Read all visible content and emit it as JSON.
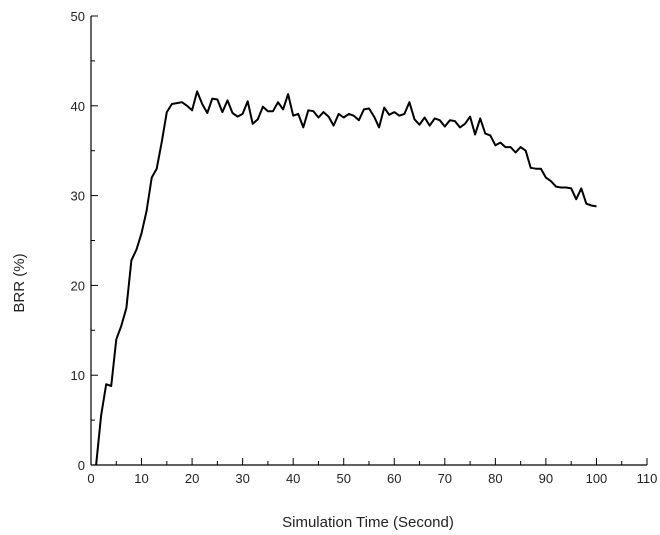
{
  "chart_data": {
    "type": "line",
    "title": "",
    "xlabel": "Simulation Time (Second)",
    "ylabel": "BRR (%)",
    "xlim": [
      0,
      110
    ],
    "ylim": [
      0,
      50
    ],
    "x_ticks": [
      "0",
      "10",
      "20",
      "30",
      "40",
      "50",
      "60",
      "70",
      "80",
      "90",
      "100",
      "110"
    ],
    "y_ticks": [
      "0",
      "10",
      "20",
      "30",
      "40",
      "50"
    ],
    "grid": false,
    "legend": "none",
    "line_color": "#000000",
    "series": [
      {
        "x": [
          1,
          2,
          3,
          4,
          5,
          6,
          7,
          8,
          9,
          10,
          11,
          12,
          13,
          14,
          15,
          16,
          17,
          18,
          19,
          20,
          21,
          22,
          23,
          24,
          25,
          26,
          27,
          28,
          29,
          30,
          31,
          32,
          33,
          34,
          35,
          36,
          37,
          38,
          39,
          40,
          41,
          42,
          43,
          44,
          45,
          46,
          47,
          48,
          49,
          50,
          51,
          52,
          53,
          54,
          55,
          56,
          57,
          58,
          59,
          60,
          61,
          62,
          63,
          64,
          65,
          66,
          67,
          68,
          69,
          70,
          71,
          72,
          73,
          74,
          75,
          76,
          77,
          78,
          79,
          80,
          81,
          82,
          83,
          84,
          85,
          86,
          87,
          88,
          89,
          90,
          91,
          92,
          93,
          94,
          95,
          96,
          97,
          98,
          99,
          100
        ],
        "y": [
          0,
          5.5,
          9,
          8.8,
          14,
          15.5,
          17.5,
          22.8,
          24,
          25.8,
          28.3,
          32,
          33,
          36,
          39.3,
          40.2,
          40.3,
          40.4,
          40,
          39.5,
          41.6,
          40.2,
          39.2,
          40.8,
          40.7,
          39.3,
          40.6,
          39.2,
          38.8,
          39.1,
          40.5,
          38,
          38.5,
          39.9,
          39.4,
          39.4,
          40.4,
          39.6,
          41.3,
          38.9,
          39.1,
          37.6,
          39.5,
          39.4,
          38.7,
          39.3,
          38.8,
          37.8,
          39.1,
          38.7,
          39.1,
          38.9,
          38.4,
          39.6,
          39.7,
          38.8,
          37.6,
          39.8,
          39.0,
          39.3,
          38.9,
          39.1,
          40.4,
          38.5,
          37.9,
          38.7,
          37.8,
          38.6,
          38.4,
          37.7,
          38.4,
          38.3,
          37.6,
          38.0,
          38.8,
          36.8,
          38.6,
          36.9,
          36.7,
          35.6,
          35.9,
          35.4,
          35.4,
          34.8,
          35.4,
          35.0,
          33.1,
          33.0,
          33.0,
          32.0,
          31.6,
          31.0,
          30.9,
          30.9,
          30.8,
          29.6,
          30.8,
          29.1,
          28.9,
          28.8
        ]
      }
    ]
  }
}
